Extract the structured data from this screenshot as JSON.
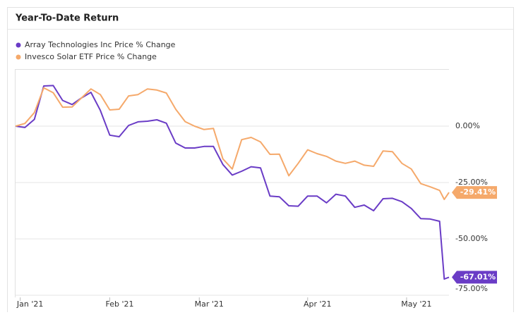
{
  "chart_data": {
    "type": "line",
    "title": "Year-To-Date Return",
    "x": [
      0,
      2,
      4,
      6,
      8,
      10,
      12,
      14,
      16,
      18,
      20,
      22,
      24,
      26,
      28,
      30,
      32,
      34,
      36,
      38,
      40,
      42,
      44,
      46,
      48,
      50,
      52,
      54,
      56,
      58,
      60,
      62,
      64,
      66,
      68,
      70,
      72,
      74,
      76,
      78,
      80,
      82,
      84,
      86,
      88,
      90,
      91,
      92
    ],
    "xlim": [
      0,
      92
    ],
    "xticks": [
      {
        "value": 1,
        "label": "Jan '21"
      },
      {
        "value": 20,
        "label": "Feb '21"
      },
      {
        "value": 39,
        "label": "Mar '21"
      },
      {
        "value": 62,
        "label": "Apr '21"
      },
      {
        "value": 83,
        "label": "May '21"
      }
    ],
    "ylim": [
      -75,
      23
    ],
    "yticks": [
      {
        "value": 0,
        "label": "0.00%"
      },
      {
        "value": -25,
        "label": "-25.00%"
      },
      {
        "value": -50,
        "label": "-50.00%"
      },
      {
        "value": -75,
        "label": "-75.00%"
      }
    ],
    "grid": true,
    "series": [
      {
        "name": "Array Technologies Inc Price % Change",
        "color": "#6a3cc6",
        "values": [
          0,
          -0.6,
          3,
          17.8,
          18,
          11.4,
          9.6,
          12.5,
          15,
          7,
          -4,
          -4.7,
          0.3,
          1.9,
          2.2,
          2.8,
          1.3,
          -7.5,
          -9.7,
          -9.7,
          -9,
          -9,
          -17,
          -21.7,
          -20,
          -18,
          -18.5,
          -31,
          -31.3,
          -35.3,
          -35.5,
          -31,
          -31,
          -34,
          -30.2,
          -31,
          -36,
          -35,
          -37.5,
          -32.2,
          -32,
          -33.5,
          -36.5,
          -41,
          -41.2,
          -42.2,
          -67.8,
          -67.01
        ],
        "value_labels": [
          null,
          null,
          null,
          null,
          null,
          null,
          null,
          null,
          null,
          null,
          null,
          null,
          null,
          null,
          null,
          null,
          null,
          null,
          null,
          null,
          null,
          null,
          null,
          null,
          null,
          null,
          null,
          null,
          null,
          null,
          null,
          null,
          null,
          null,
          null,
          null,
          null,
          null,
          null,
          null,
          null,
          null,
          null,
          null,
          null,
          null,
          null,
          "-67.01%"
        ]
      },
      {
        "name": "Invesco Solar ETF Price % Change",
        "color": "#f5a96b",
        "values": [
          0,
          1.2,
          6,
          17,
          14.8,
          8.4,
          8.5,
          12.5,
          16.5,
          14,
          7.2,
          7.5,
          13.4,
          14,
          16.5,
          16,
          14.7,
          7.5,
          2,
          0,
          -1.5,
          -1,
          -14.5,
          -19,
          -6,
          -5,
          -7,
          -12.5,
          -12.4,
          -22,
          -16.5,
          -10.5,
          -12.2,
          -13.4,
          -15.5,
          -16.5,
          -15.5,
          -17.3,
          -17.8,
          -11,
          -11.3,
          -16.5,
          -19,
          -25.5,
          -26.9,
          -28.5,
          -32.5,
          -29.41
        ],
        "value_labels": [
          null,
          null,
          null,
          null,
          null,
          null,
          null,
          null,
          null,
          null,
          null,
          null,
          null,
          null,
          null,
          null,
          null,
          null,
          null,
          null,
          null,
          null,
          null,
          null,
          null,
          null,
          null,
          null,
          null,
          null,
          null,
          null,
          null,
          null,
          null,
          null,
          null,
          null,
          null,
          null,
          null,
          null,
          null,
          null,
          null,
          null,
          null,
          "-29.41%"
        ]
      }
    ]
  }
}
